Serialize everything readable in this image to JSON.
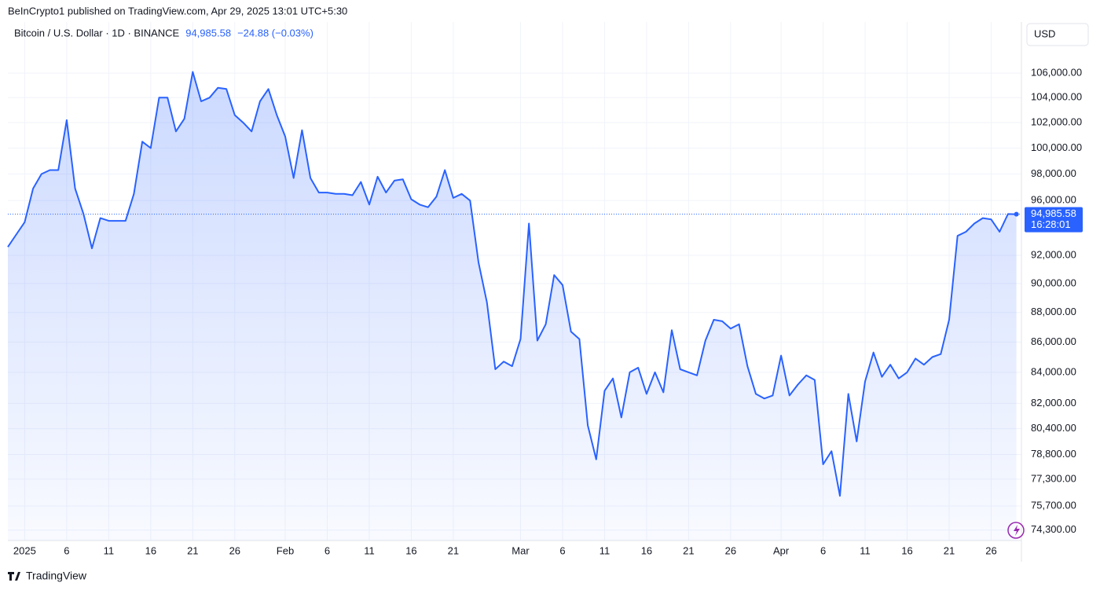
{
  "header": {
    "published": "BeInCrypto1 published on TradingView.com, Apr 29, 2025 13:01 UTC+5:30",
    "change": "−24.88 (−0.03%)"
  },
  "footer": {
    "brand": "TradingView"
  },
  "chart_data": {
    "type": "area",
    "series": [
      {
        "name": "Bitcoin / U.S. Dollar · 1D · BINANCE",
        "color": "#2962ff",
        "values": [
          92600,
          93500,
          94400,
          96900,
          98000,
          98300,
          98300,
          102200,
          96900,
          95000,
          92500,
          94700,
          94500,
          94500,
          94500,
          96500,
          100500,
          100000,
          104000,
          104000,
          101300,
          102300,
          106100,
          103700,
          104000,
          104800,
          104700,
          102600,
          102000,
          101300,
          103700,
          104700,
          102600,
          100900,
          97700,
          101400,
          97700,
          96600,
          96600,
          96500,
          96500,
          96400,
          97400,
          95700,
          97800,
          96600,
          97500,
          97600,
          96100,
          95700,
          95500,
          96300,
          98300,
          96200,
          96500,
          96000,
          91500,
          88700,
          84200,
          84700,
          84400,
          86200,
          94300,
          86100,
          87200,
          90600,
          89900,
          86700,
          86200,
          80600,
          78500,
          82800,
          83600,
          81100,
          84000,
          84300,
          82600,
          84000,
          82700,
          86800,
          84200,
          84000,
          83800,
          86100,
          87500,
          87400,
          86900,
          87200,
          84400,
          82600,
          82300,
          82500,
          85100,
          82500,
          83200,
          83800,
          83500,
          78200,
          79000,
          76300,
          82600,
          79600,
          83400,
          85300,
          83700,
          84500,
          83600,
          84000,
          84900,
          84500,
          85000,
          85200,
          87500,
          93400,
          93700,
          94300,
          94700,
          94600,
          93700,
          95000,
          94985.58
        ]
      }
    ],
    "x": [
      -2,
      -1,
      0,
      1,
      2,
      3,
      4,
      5,
      6,
      7,
      8,
      9,
      10,
      11,
      12,
      13,
      14,
      15,
      16,
      17,
      18,
      19,
      20,
      21,
      22,
      23,
      24,
      25,
      26,
      27,
      28,
      29,
      30,
      31,
      32,
      33,
      34,
      35,
      36,
      37,
      38,
      39,
      40,
      41,
      42,
      43,
      44,
      45,
      46,
      47,
      48,
      49,
      50,
      51,
      52,
      53,
      54,
      55,
      56,
      57,
      58,
      59,
      60,
      61,
      62,
      63,
      64,
      65,
      66,
      67,
      68,
      69,
      70,
      71,
      72,
      73,
      74,
      75,
      76,
      77,
      78,
      79,
      80,
      81,
      82,
      83,
      84,
      85,
      86,
      87,
      88,
      89,
      90,
      91,
      92,
      93,
      94,
      95,
      96,
      97,
      98,
      99,
      100,
      101,
      102,
      103,
      104,
      105,
      106,
      107,
      108,
      109,
      110,
      111,
      112,
      113,
      114,
      115,
      116,
      117,
      118
    ],
    "last_price": {
      "value": 94985.58,
      "label": "94,985.58"
    },
    "countdown": "16:28:01",
    "currency": "USD",
    "log_scale": true,
    "grid": true,
    "xlim": [
      -2,
      118.6
    ],
    "ylim": [
      73700,
      110300
    ],
    "xticks": [
      {
        "value": 0,
        "label": "2025"
      },
      {
        "value": 5,
        "label": "6"
      },
      {
        "value": 10,
        "label": "11"
      },
      {
        "value": 15,
        "label": "16"
      },
      {
        "value": 20,
        "label": "21"
      },
      {
        "value": 25,
        "label": "26"
      },
      {
        "value": 31,
        "label": "Feb"
      },
      {
        "value": 36,
        "label": "6"
      },
      {
        "value": 41,
        "label": "11"
      },
      {
        "value": 46,
        "label": "16"
      },
      {
        "value": 51,
        "label": "21"
      },
      {
        "value": 59,
        "label": "Mar"
      },
      {
        "value": 64,
        "label": "6"
      },
      {
        "value": 69,
        "label": "11"
      },
      {
        "value": 74,
        "label": "16"
      },
      {
        "value": 79,
        "label": "21"
      },
      {
        "value": 84,
        "label": "26"
      },
      {
        "value": 90,
        "label": "Apr"
      },
      {
        "value": 95,
        "label": "6"
      },
      {
        "value": 100,
        "label": "11"
      },
      {
        "value": 105,
        "label": "16"
      },
      {
        "value": 110,
        "label": "21"
      },
      {
        "value": 115,
        "label": "26"
      }
    ],
    "yticks": [
      {
        "value": 106000,
        "label": "106,000.00"
      },
      {
        "value": 104000,
        "label": "104,000.00"
      },
      {
        "value": 102000,
        "label": "102,000.00"
      },
      {
        "value": 100000,
        "label": "100,000.00"
      },
      {
        "value": 98000,
        "label": "98,000.00"
      },
      {
        "value": 96000,
        "label": "96,000.00"
      },
      {
        "value": 92000,
        "label": "92,000.00"
      },
      {
        "value": 90000,
        "label": "90,000.00"
      },
      {
        "value": 88000,
        "label": "88,000.00"
      },
      {
        "value": 86000,
        "label": "86,000.00"
      },
      {
        "value": 84000,
        "label": "84,000.00"
      },
      {
        "value": 82000,
        "label": "82,000.00"
      },
      {
        "value": 80400,
        "label": "80,400.00"
      },
      {
        "value": 78800,
        "label": "78,800.00"
      },
      {
        "value": 77300,
        "label": "77,300.00"
      },
      {
        "value": 75700,
        "label": "75,700.00"
      },
      {
        "value": 74300,
        "label": "74,300.00"
      }
    ]
  }
}
